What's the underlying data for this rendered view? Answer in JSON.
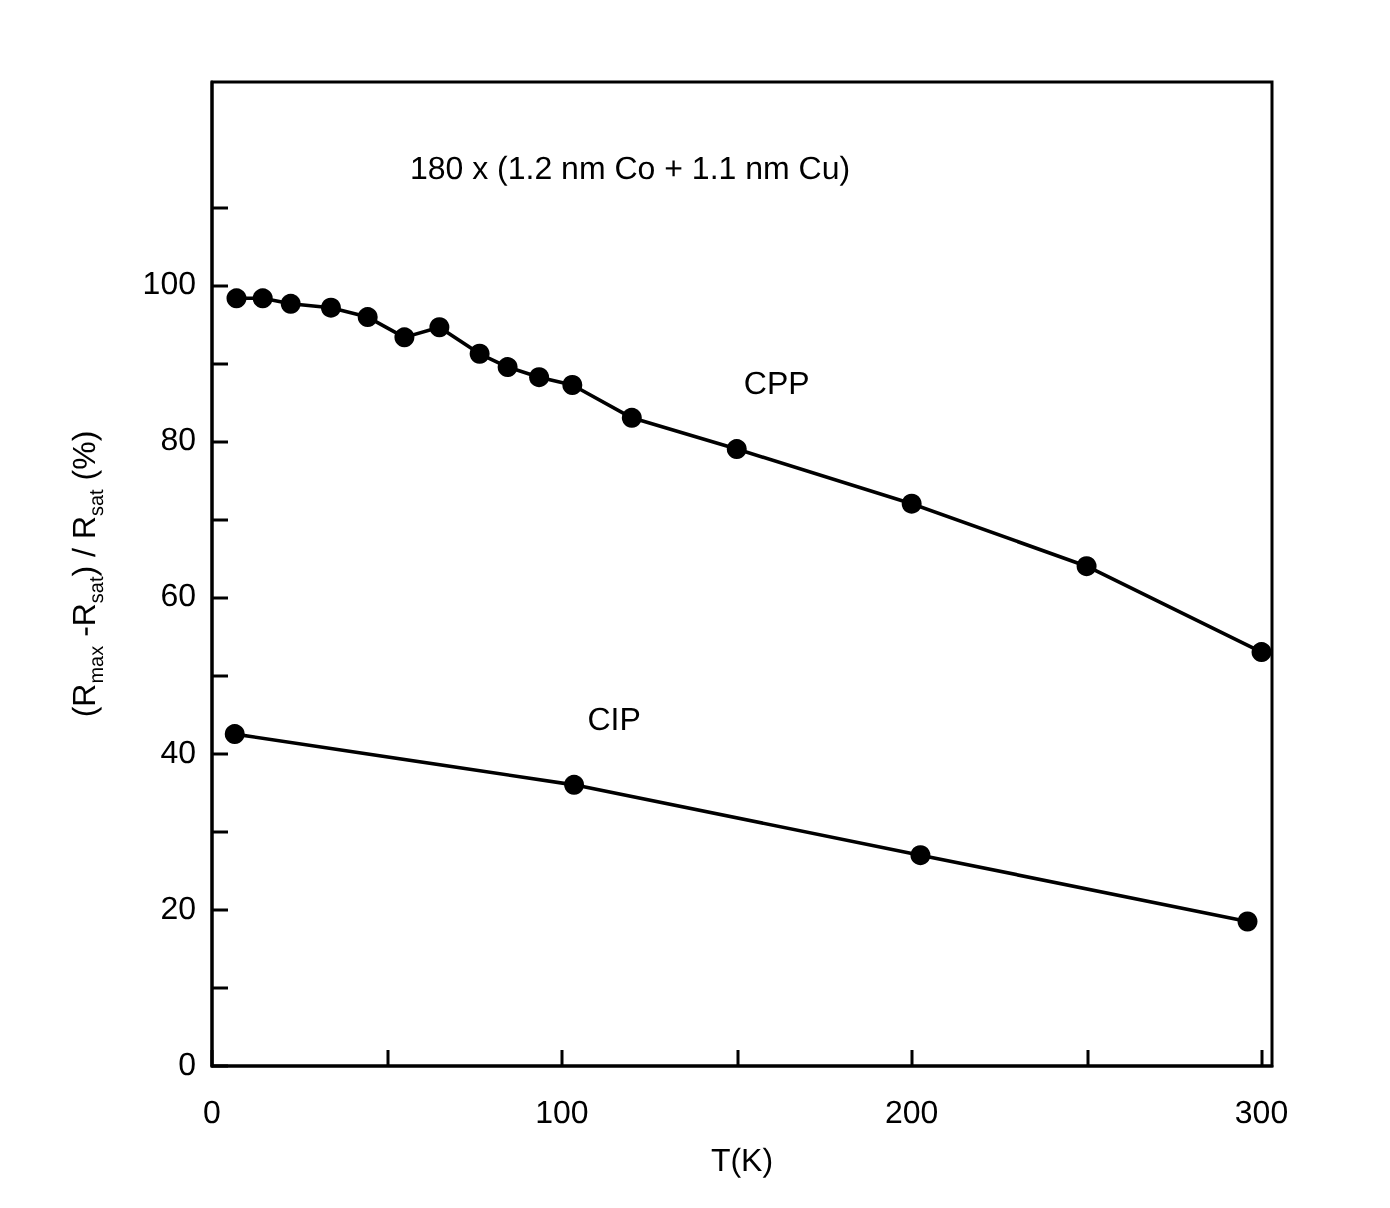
{
  "chart_data": {
    "type": "line",
    "title": "180 x (1.2 nm Co + 1.1 nm Cu)",
    "xlabel": "T(K)",
    "ylabel": "(R$_{max}$ -R$_{sat}$) / R$_{sat}$ (%)",
    "series": [
      {
        "name": "CPP",
        "color": "#000000",
        "x": [
          7,
          14.5,
          22.5,
          34,
          44.5,
          55,
          65,
          76.5,
          84.5,
          93.5,
          103,
          120,
          150,
          200,
          250,
          300
        ],
        "values": [
          98.3,
          98.3,
          97.6,
          97.1,
          95.9,
          93.3,
          94.6,
          91.2,
          89.5,
          88.2,
          87.2,
          83,
          79,
          72,
          64,
          53
        ]
      },
      {
        "name": "CIP",
        "color": "#000000",
        "x": [
          6.5,
          103.5,
          202.5,
          296
        ],
        "values": [
          42.5,
          36,
          27,
          18.5
        ]
      }
    ],
    "xlim": [
      0,
      303
    ],
    "ylim": [
      0,
      126
    ],
    "xticks": [
      0,
      {
        "value": 50,
        "label": null
      },
      100,
      {
        "value": 150,
        "label": null
      },
      200,
      {
        "value": 250,
        "label": null
      },
      300
    ],
    "yticks": [
      0,
      {
        "value": 10,
        "label": null
      },
      20,
      {
        "value": 30,
        "label": null
      },
      40,
      {
        "value": 50,
        "label": null
      },
      60,
      {
        "value": 70,
        "label": null
      },
      80,
      {
        "value": 90,
        "label": null
      },
      100,
      {
        "value": 110,
        "label": null
      }
    ],
    "grid": false,
    "legend": false,
    "marker": "circle",
    "line_style": "solid"
  }
}
